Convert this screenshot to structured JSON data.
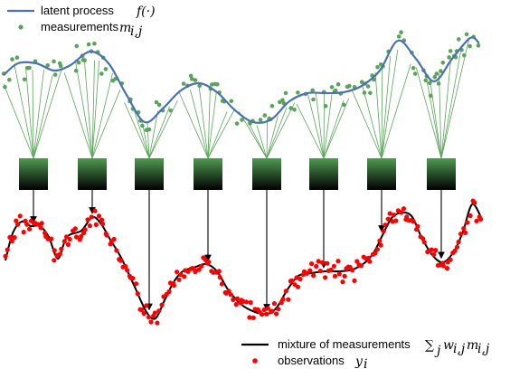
{
  "legend_top": {
    "latent_label": "latent process",
    "latent_math": "f(·)",
    "measure_label": "measurements",
    "measure_math": "m",
    "measure_math_sub": "i,j"
  },
  "legend_bottom": {
    "mixture_label": "mixture of measurements",
    "mixture_math_sum": "∑",
    "mixture_math_sum_sub": "j",
    "mixture_math_w": "w",
    "mixture_math_w_sub": "i,j",
    "mixture_math_m": "m",
    "mixture_math_m_sub": "i,j",
    "obs_label": "observations",
    "obs_math": "y",
    "obs_math_sub": "i"
  },
  "colors": {
    "latent_curve": "#4a72b0",
    "measurement_dots": "#5aa45a",
    "fan_lines": "#5aa45a",
    "box_top": "#4f9a52",
    "box_bottom": "#000000",
    "mixture_curve": "#000000",
    "observation_dots": "#ff0000",
    "arrows": "#000000"
  },
  "latent_process_samples": {
    "t": [
      0,
      0.033,
      0.066,
      0.1,
      0.133,
      0.166,
      0.2,
      0.233,
      0.266,
      0.3,
      0.333,
      0.366,
      0.4,
      0.433,
      0.466,
      0.5,
      0.533,
      0.566,
      0.6,
      0.633,
      0.666,
      0.7,
      0.733,
      0.766,
      0.8,
      0.833,
      0.866,
      0.9,
      0.933,
      0.966,
      1.0
    ],
    "f": [
      0.55,
      0.72,
      0.62,
      0.38,
      0.58,
      0.88,
      0.62,
      0.1,
      -0.35,
      -0.1,
      0.28,
      -0.05,
      -0.55,
      -0.78,
      -0.72,
      -0.95,
      -0.4,
      -0.22,
      -0.25,
      -0.2,
      0.15,
      0.32,
      1.12,
      0.68,
      0.22,
      0.78,
      0.08,
      0.78,
      1.15,
      0.55,
      0.55
    ]
  },
  "observations": {
    "count": 220
  },
  "unit_count": 8
}
